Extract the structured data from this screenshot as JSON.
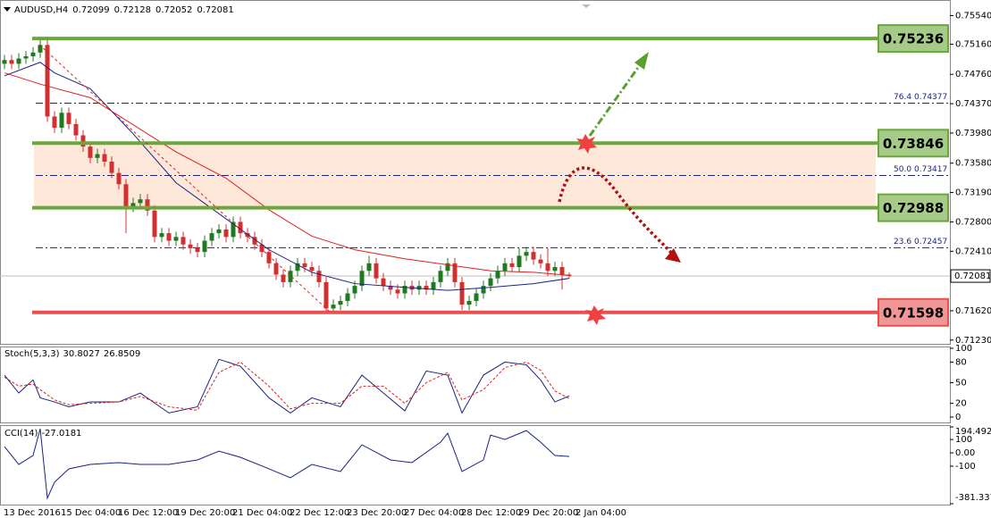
{
  "chart_data": {
    "type": "candlestick",
    "title": "AUDUSD,H4",
    "up_color": "#1f7a1f",
    "down_color": "#d03030",
    "ylim": [
      0.7118,
      0.757
    ],
    "yticks": [
      {
        "value": 0.7554,
        "label": "0.75540"
      },
      {
        "value": 0.7516,
        "label": "0.75160"
      },
      {
        "value": 0.7476,
        "label": "0.74760"
      },
      {
        "value": 0.7437,
        "label": "0.74370"
      },
      {
        "value": 0.7398,
        "label": "0.73980"
      },
      {
        "value": 0.7358,
        "label": "0.73580"
      },
      {
        "value": 0.7319,
        "label": "0.73190"
      },
      {
        "value": 0.728,
        "label": "0.72800"
      },
      {
        "value": 0.7241,
        "label": "0.72410"
      },
      {
        "value": 0.7162,
        "label": "0.71620"
      },
      {
        "value": 0.7123,
        "label": "0.71230"
      }
    ],
    "categories": [
      "13 Dec 2016",
      "15 Dec 04:00",
      "16 Dec 12:00",
      "19 Dec 20:00",
      "21 Dec 04:00",
      "22 Dec 12:00",
      "23 Dec 20:00",
      "27 Dec 04:00",
      "28 Dec 12:00",
      "29 Dec 20:00",
      "2 Jan 04:00"
    ],
    "candles": {
      "open": [
        0.749,
        0.7495,
        0.749,
        0.7497,
        0.75,
        0.7505,
        0.7515,
        0.742,
        0.7405,
        0.7425,
        0.741,
        0.7395,
        0.738,
        0.7365,
        0.737,
        0.736,
        0.7345,
        0.733,
        0.73,
        0.7305,
        0.731,
        0.7295,
        0.726,
        0.7265,
        0.7255,
        0.726,
        0.725,
        0.7245,
        0.724,
        0.7255,
        0.7265,
        0.727,
        0.726,
        0.728,
        0.7265,
        0.726,
        0.725,
        0.724,
        0.7225,
        0.721,
        0.72,
        0.7215,
        0.7225,
        0.722,
        0.7215,
        0.72,
        0.7165,
        0.717,
        0.7175,
        0.7185,
        0.7195,
        0.7215,
        0.7225,
        0.7205,
        0.7195,
        0.719,
        0.7185,
        0.7195,
        0.719,
        0.7195,
        0.719,
        0.72,
        0.7215,
        0.7225,
        0.72,
        0.717,
        0.7175,
        0.7185,
        0.7195,
        0.7205,
        0.7215,
        0.7225,
        0.722,
        0.7235,
        0.724,
        0.723,
        0.7225,
        0.7215,
        0.722,
        0.72099
      ],
      "high": [
        0.7502,
        0.7502,
        0.7504,
        0.7507,
        0.7512,
        0.7524,
        0.7522,
        0.7427,
        0.7432,
        0.7432,
        0.7417,
        0.7402,
        0.7387,
        0.7377,
        0.7377,
        0.7367,
        0.7352,
        0.7337,
        0.7312,
        0.7317,
        0.7317,
        0.7302,
        0.7272,
        0.7272,
        0.7267,
        0.7267,
        0.7257,
        0.7252,
        0.7262,
        0.7272,
        0.7277,
        0.7277,
        0.7287,
        0.7287,
        0.7272,
        0.7267,
        0.7257,
        0.7247,
        0.7232,
        0.7217,
        0.7222,
        0.7232,
        0.7232,
        0.7227,
        0.7222,
        0.7207,
        0.7177,
        0.7182,
        0.7192,
        0.7202,
        0.7222,
        0.7235,
        0.7232,
        0.7212,
        0.7202,
        0.7197,
        0.7202,
        0.7202,
        0.7202,
        0.7202,
        0.7207,
        0.7222,
        0.7232,
        0.7232,
        0.7207,
        0.7182,
        0.7192,
        0.7202,
        0.7212,
        0.7222,
        0.7232,
        0.7232,
        0.7245,
        0.7247,
        0.7247,
        0.7237,
        0.7245,
        0.7227,
        0.7227,
        0.72128
      ],
      "low": [
        0.7483,
        0.7483,
        0.7483,
        0.749,
        0.7493,
        0.7498,
        0.7413,
        0.7398,
        0.7398,
        0.7403,
        0.7388,
        0.7373,
        0.7358,
        0.7358,
        0.7353,
        0.7338,
        0.7323,
        0.7265,
        0.7293,
        0.7298,
        0.7288,
        0.7253,
        0.7253,
        0.7248,
        0.7248,
        0.7243,
        0.7238,
        0.7233,
        0.7233,
        0.7248,
        0.7258,
        0.7253,
        0.7253,
        0.7258,
        0.7253,
        0.7243,
        0.7233,
        0.7218,
        0.7203,
        0.7193,
        0.7193,
        0.7208,
        0.7213,
        0.7208,
        0.7193,
        0.7158,
        0.7158,
        0.7163,
        0.7168,
        0.7178,
        0.7188,
        0.7208,
        0.7198,
        0.7188,
        0.7183,
        0.7178,
        0.7178,
        0.7183,
        0.7183,
        0.7183,
        0.7183,
        0.7193,
        0.7208,
        0.7193,
        0.7163,
        0.7163,
        0.7168,
        0.7178,
        0.7188,
        0.7198,
        0.7208,
        0.7213,
        0.7213,
        0.7228,
        0.7223,
        0.7218,
        0.7208,
        0.7208,
        0.719,
        0.72052
      ],
      "close": [
        0.7495,
        0.749,
        0.7497,
        0.75,
        0.7505,
        0.7515,
        0.742,
        0.7405,
        0.7425,
        0.741,
        0.7395,
        0.738,
        0.7365,
        0.737,
        0.736,
        0.7345,
        0.733,
        0.73,
        0.7305,
        0.731,
        0.7295,
        0.726,
        0.7265,
        0.7255,
        0.726,
        0.725,
        0.7245,
        0.724,
        0.7255,
        0.7265,
        0.727,
        0.726,
        0.728,
        0.7265,
        0.726,
        0.725,
        0.724,
        0.7225,
        0.721,
        0.72,
        0.7215,
        0.7225,
        0.722,
        0.7215,
        0.72,
        0.7165,
        0.717,
        0.7175,
        0.7185,
        0.7195,
        0.7215,
        0.7225,
        0.7205,
        0.7195,
        0.719,
        0.7185,
        0.7195,
        0.719,
        0.7195,
        0.719,
        0.72,
        0.7215,
        0.7225,
        0.72,
        0.717,
        0.7175,
        0.7185,
        0.7195,
        0.7205,
        0.7215,
        0.7225,
        0.722,
        0.7235,
        0.724,
        0.723,
        0.7225,
        0.7215,
        0.722,
        0.721,
        0.72081
      ]
    },
    "moving_averages": [
      {
        "color": "#e02020",
        "x": [
          0,
          5,
          12,
          18,
          24,
          31,
          37,
          43,
          49,
          56,
          62,
          68,
          74,
          79
        ],
        "values": [
          0.7478,
          0.7463,
          0.7445,
          0.7409,
          0.7373,
          0.7338,
          0.7296,
          0.7261,
          0.7243,
          0.7231,
          0.7223,
          0.7215,
          0.7213,
          0.7209
        ]
      },
      {
        "color": "#1a237e",
        "x": [
          0,
          5,
          7,
          12,
          18,
          24,
          31,
          37,
          43,
          49,
          56,
          62,
          68,
          74,
          79
        ],
        "values": [
          0.7474,
          0.7492,
          0.7478,
          0.7457,
          0.7397,
          0.7332,
          0.7284,
          0.7243,
          0.7213,
          0.7198,
          0.7193,
          0.7189,
          0.7193,
          0.7198,
          0.7205
        ]
      }
    ],
    "levels": [
      {
        "value": 0.75236,
        "color": "#6aa83a"
      },
      {
        "value": 0.73846,
        "color": "#6aa83a"
      },
      {
        "value": 0.72988,
        "color": "#6aa83a"
      },
      {
        "value": 0.71598,
        "color": "#e85050"
      }
    ],
    "fib": [
      {
        "ratio": 76.4,
        "price": 0.74377
      },
      {
        "ratio": {
          "value": 50,
          "label": "50.0"
        },
        "price": 0.73417
      },
      {
        "ratio": 23.6,
        "price": 0.72457
      }
    ],
    "stochastic": {
      "title": "Stoch(5,3,3)",
      "ylim": [
        0,
        100
      ],
      "yticks": [
        100,
        80,
        50,
        20,
        0
      ],
      "x": [
        0,
        2,
        4,
        5,
        7,
        9,
        12,
        16,
        19,
        23,
        27,
        30,
        33,
        37,
        40,
        43,
        47,
        50,
        53,
        56,
        59,
        62,
        64,
        67,
        70,
        73,
        75,
        77,
        79
      ],
      "series": [
        {
          "color": "#1a237e",
          "values": [
            61,
            35,
            54,
            28,
            22,
            15,
            22,
            22,
            35,
            6,
            15,
            84,
            74,
            28,
            6,
            28,
            15,
            61,
            35,
            9,
            67,
            61,
            6,
            61,
            80,
            76,
            54,
            22,
            30.8027
          ]
        },
        {
          "color": "#e02020",
          "dashed": true,
          "values": [
            58,
            45,
            48,
            40,
            25,
            18,
            20,
            22,
            30,
            15,
            10,
            65,
            80,
            45,
            12,
            20,
            20,
            45,
            45,
            20,
            50,
            65,
            25,
            40,
            72,
            80,
            68,
            38,
            26.8509
          ]
        }
      ]
    },
    "cci": {
      "title": "CCI(14)",
      "ylim": [
        -381.3375,
        194.4922
      ],
      "yticks": [
        194.4922,
        100,
        {
          "value": 0,
          "label": "0.00"
        },
        -100,
        -381.3375
      ],
      "x": [
        0,
        2,
        4,
        5,
        6,
        7,
        9,
        12,
        16,
        19,
        23,
        27,
        30,
        33,
        37,
        40,
        43,
        47,
        50,
        54,
        57,
        61,
        62,
        64,
        67,
        68,
        70,
        73,
        75,
        77,
        79
      ],
      "color": "#1a237e",
      "values": [
        47,
        -87,
        -20,
        180,
        -340,
        -220,
        -120,
        -87,
        -73,
        -87,
        -87,
        -53,
        13,
        -33,
        -120,
        -187,
        -87,
        -140,
        60,
        -53,
        -73,
        80,
        147,
        -140,
        -53,
        133,
        100,
        167,
        80,
        -20,
        -27.0181
      ]
    }
  }
}
